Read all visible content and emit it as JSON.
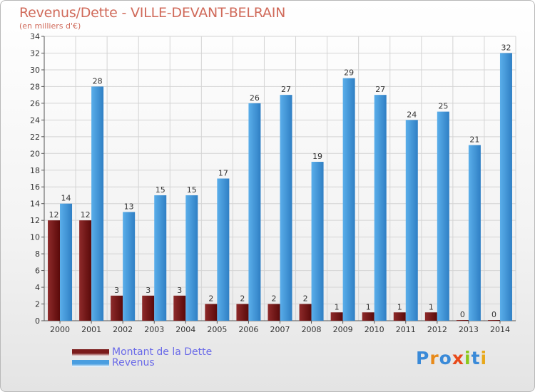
{
  "title": "Revenus/Dette - VILLE-DEVANT-BELRAIN",
  "subtitle": "(en milliers d'€)",
  "colors": {
    "dette": "#7a1a1a",
    "revenus": "#4a9ee0",
    "grid": "#d4d4d4",
    "title": "#d06a5a",
    "legend_text": "#6a6ae8"
  },
  "legend": [
    {
      "label": "Montant de la Dette",
      "color": "#7a1a1a"
    },
    {
      "label": "Revenus",
      "color": "#4a9ee0"
    }
  ],
  "logo": {
    "letters": [
      "P",
      "r",
      "o",
      "x",
      "i",
      "t",
      "i"
    ],
    "colors": [
      "#3a8ad8",
      "#e88a1a",
      "#3a8ad8",
      "#e84a1a",
      "#8ac81a",
      "#3a8ad8",
      "#e8a81a"
    ]
  },
  "chart_data": {
    "type": "bar",
    "title": "Revenus/Dette - VILLE-DEVANT-BELRAIN",
    "subtitle": "(en milliers d'€)",
    "xlabel": "",
    "ylabel": "",
    "categories": [
      "2000",
      "2001",
      "2002",
      "2003",
      "2004",
      "2005",
      "2006",
      "2007",
      "2008",
      "2009",
      "2010",
      "2011",
      "2012",
      "2013",
      "2014"
    ],
    "series": [
      {
        "name": "Montant de la Dette",
        "values": [
          12,
          12,
          3,
          3,
          3,
          2,
          2,
          2,
          2,
          1,
          1,
          1,
          1,
          0,
          0
        ]
      },
      {
        "name": "Revenus",
        "values": [
          14,
          28,
          13,
          15,
          15,
          17,
          26,
          27,
          19,
          29,
          27,
          24,
          25,
          21,
          32
        ]
      }
    ],
    "ylim": [
      0,
      34
    ],
    "yticks": [
      0,
      2,
      4,
      6,
      8,
      10,
      12,
      14,
      16,
      18,
      20,
      22,
      24,
      26,
      28,
      30,
      32,
      34
    ],
    "grid": true,
    "legend_position": "bottom-left"
  }
}
